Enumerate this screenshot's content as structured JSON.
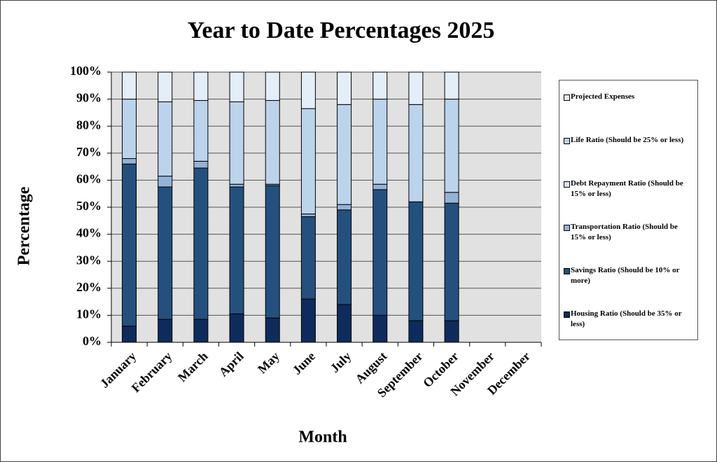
{
  "chart_data": {
    "type": "stacked-bar",
    "title": "Year to Date Percentages 2025",
    "x_label": "Month",
    "y_label": "Percentage",
    "categories": [
      "January",
      "February",
      "March",
      "April",
      "May",
      "June",
      "July",
      "August",
      "September",
      "October",
      "November",
      "December"
    ],
    "series": [
      {
        "name": "Housing Ratio (Should be 35% or less)",
        "color": "#0e2b5c",
        "values": [
          6,
          8.5,
          8.5,
          10.5,
          9,
          16,
          14,
          10,
          8,
          8,
          null,
          null
        ]
      },
      {
        "name": "Savings Ratio (Should be 10% or more)",
        "color": "#24507e",
        "values": [
          60,
          49,
          56,
          47,
          49,
          30.5,
          35,
          46.5,
          44,
          43.5,
          null,
          null
        ]
      },
      {
        "name": "Transportation Ratio (Should be 15% or less)",
        "color": "#95b3d7",
        "values": [
          2,
          4,
          2.5,
          1,
          0.5,
          1,
          2,
          2,
          0,
          4,
          null,
          null
        ]
      },
      {
        "name": "Debt Repayment Ratio (Should be 15% or less)",
        "color": "#dbe6f2",
        "values": [
          0,
          0,
          0,
          0,
          0,
          0,
          0,
          0,
          0,
          0,
          null,
          null
        ]
      },
      {
        "name": "Life Ratio (Should be 25% or less)",
        "color": "#bcd3ec",
        "values": [
          22,
          27.5,
          22.5,
          30.5,
          31,
          39,
          37,
          31.5,
          36,
          34.5,
          null,
          null
        ]
      },
      {
        "name": "Projected Expenses",
        "color": "#e4eef9",
        "values": [
          10,
          11,
          10.5,
          11,
          10.5,
          13.5,
          12,
          10,
          12,
          10,
          null,
          null
        ]
      }
    ],
    "ylim": [
      0,
      100
    ],
    "yticks": [
      {
        "value": 0,
        "label": "0%"
      },
      {
        "value": 10,
        "label": "10%"
      },
      {
        "value": 20,
        "label": "20%"
      },
      {
        "value": 30,
        "label": "30%"
      },
      {
        "value": 40,
        "label": "40%"
      },
      {
        "value": 50,
        "label": "50%"
      },
      {
        "value": 60,
        "label": "60%"
      },
      {
        "value": 70,
        "label": "70%"
      },
      {
        "value": 80,
        "label": "80%"
      },
      {
        "value": 90,
        "label": "90%"
      },
      {
        "value": 100,
        "label": "100%"
      }
    ],
    "grid": true
  }
}
